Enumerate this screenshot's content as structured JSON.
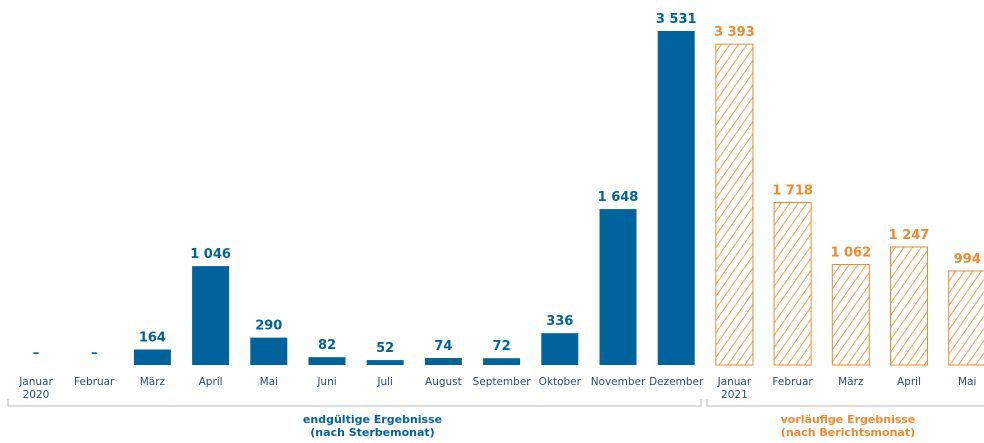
{
  "colors": {
    "final": "#00639e",
    "provisional": "#f08a2a",
    "tick": "#1f4f78",
    "bracket": "#b8b8b8"
  },
  "chart_data": {
    "type": "bar",
    "ylim": [
      0,
      3600
    ],
    "grid": false,
    "series": [
      {
        "style": "solid",
        "categories": [
          "Januar 2020",
          "Februar",
          "März",
          "April",
          "Mai",
          "Juni",
          "Juli",
          "August",
          "September",
          "Oktober",
          "November",
          "Dezember"
        ],
        "values": [
          null,
          null,
          164,
          1046,
          290,
          82,
          52,
          74,
          72,
          336,
          1648,
          3531
        ],
        "value_labels": [
          "–",
          "–",
          "164",
          "1 046",
          "290",
          "82",
          "52",
          "74",
          "72",
          "336",
          "1 648",
          "3 531"
        ]
      },
      {
        "style": "hatched",
        "categories": [
          "Januar 2021",
          "Februar",
          "März",
          "April",
          "Mai"
        ],
        "values": [
          3393,
          1718,
          1062,
          1247,
          994
        ],
        "value_labels": [
          "3 393",
          "1 718",
          "1 062",
          "1 247",
          "994"
        ]
      }
    ],
    "tick_labels": [
      [
        "Januar",
        "2020"
      ],
      [
        "Februar"
      ],
      [
        "März"
      ],
      [
        "April"
      ],
      [
        "Mai"
      ],
      [
        "Juni"
      ],
      [
        "Juli"
      ],
      [
        "August"
      ],
      [
        "September"
      ],
      [
        "Oktober"
      ],
      [
        "November"
      ],
      [
        "Dezember"
      ],
      [
        "Januar",
        "2021"
      ],
      [
        "Februar"
      ],
      [
        "März"
      ],
      [
        "April"
      ],
      [
        "Mai"
      ]
    ],
    "groups": [
      {
        "line1": "endgültige Ergebnisse",
        "line2": "(nach Sterbemonat)"
      },
      {
        "line1": "vorläufige Ergebnisse",
        "line2": "(nach Berichtsmonat)"
      }
    ]
  }
}
